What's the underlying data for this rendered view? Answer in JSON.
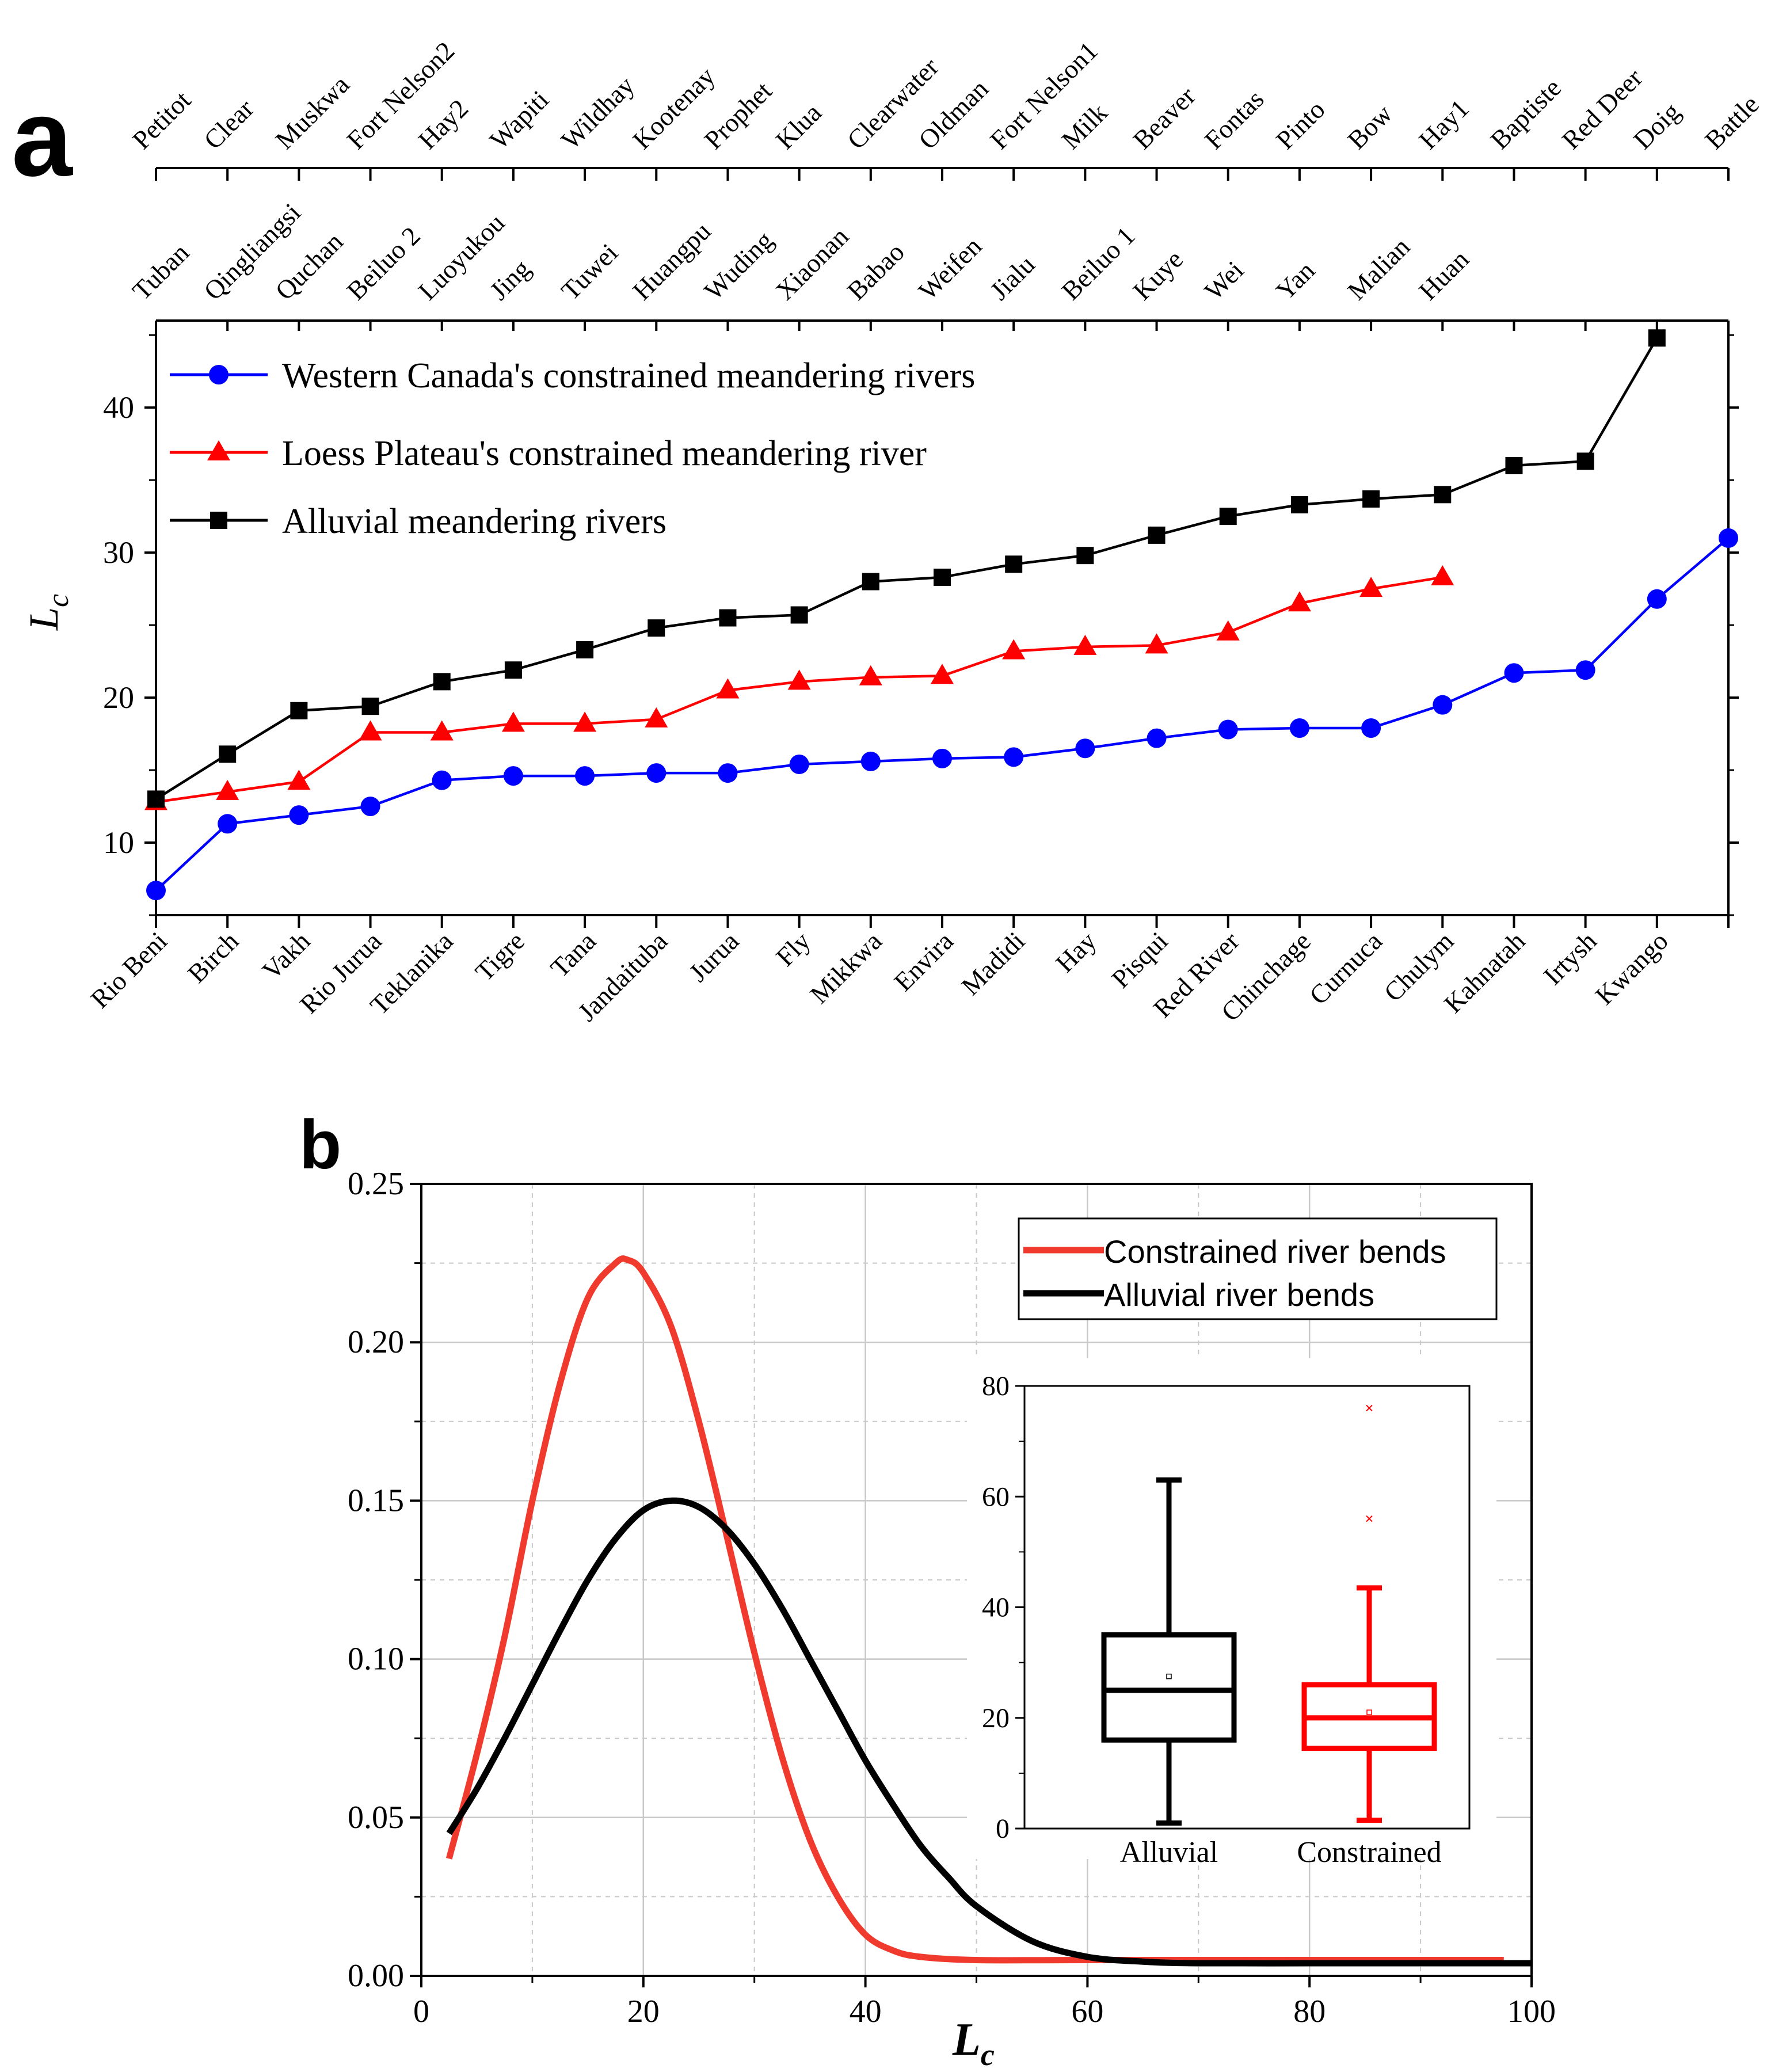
{
  "colors": {
    "western_canada": "#0000ff",
    "loess_plateau": "#ff0000",
    "alluvial": "#000000",
    "constrained_curve": "#f03a2e",
    "grid": "#c8c8c8"
  },
  "chart_data": [
    {
      "panel": "a",
      "type": "line",
      "ylabel": "L",
      "ylabel_sub": "c",
      "ylim": [
        5,
        46
      ],
      "yticks": [
        10,
        20,
        30,
        40
      ],
      "bottom_axis_labels": [
        "Rio Beni",
        "Birch",
        "Vakh",
        "Rio Jurua",
        "Teklanika",
        "Tigre",
        "Tana",
        "Jandaituba",
        "Jurua",
        "Fly",
        "Mikkwa",
        "Envira",
        "Madidi",
        "Hay",
        "Pisqui",
        "Red River",
        "Chinchage",
        "Curnuca",
        "Chulym",
        "Kahnatah",
        "Irtysh",
        "Kwango"
      ],
      "top_axis_labels_1": [
        "Petitot",
        "Clear",
        "Muskwa",
        "Fort Nelson2",
        "Hay2",
        "Wapiti",
        "Wildhay",
        "Kootenay",
        "Prophet",
        "Klua",
        "Clearwater",
        "Oldman",
        "Fort Nelson1",
        "Milk",
        "Beaver",
        "Fontas",
        "Pinto",
        "Bow",
        "Hay1",
        "Baptiste",
        "Red Deer",
        "Doig",
        "Battle"
      ],
      "top_axis_labels_2": [
        "Tuban",
        "Qingliangsi",
        "Quchan",
        "Beiluo 2",
        "Luoyukou",
        "Jing",
        "Tuwei",
        "Huangpu",
        "Wuding",
        "Xiaonan",
        "Babao",
        "Weifen",
        "Jialu",
        "Beiluo 1",
        "Kuye",
        "Wei",
        "Yan",
        "Malian",
        "Huan"
      ],
      "series": [
        {
          "name": "Western Canada's constrained meandering rivers",
          "marker": "circle",
          "color_key": "western_canada",
          "values": [
            6.7,
            11.3,
            11.9,
            12.5,
            14.3,
            14.6,
            14.6,
            14.8,
            14.8,
            15.4,
            15.6,
            15.8,
            15.9,
            16.5,
            17.2,
            17.8,
            17.9,
            17.9,
            19.5,
            21.7,
            21.9,
            26.8,
            31.0
          ]
        },
        {
          "name": "Loess Plateau's constrained meandering river",
          "marker": "triangle",
          "color_key": "loess_plateau",
          "values": [
            12.8,
            13.5,
            14.2,
            17.6,
            17.6,
            18.2,
            18.2,
            18.5,
            20.5,
            21.1,
            21.4,
            21.5,
            23.2,
            23.5,
            23.6,
            24.5,
            26.5,
            27.5,
            28.3
          ]
        },
        {
          "name": "Alluvial meandering rivers",
          "marker": "square",
          "color_key": "alluvial",
          "values": [
            13.0,
            16.1,
            19.1,
            19.4,
            21.1,
            21.9,
            23.3,
            24.8,
            25.5,
            25.7,
            28.0,
            28.3,
            29.2,
            29.8,
            31.2,
            32.5,
            33.3,
            33.7,
            34.0,
            36.0,
            36.3,
            44.8
          ]
        }
      ]
    },
    {
      "panel": "b",
      "type": "line",
      "xlabel": "L",
      "xlabel_sub": "c",
      "xlim": [
        0,
        100
      ],
      "ylim": [
        0,
        0.25
      ],
      "xticks": [
        0,
        20,
        40,
        60,
        80,
        100
      ],
      "yticks": [
        0.0,
        0.05,
        0.1,
        0.15,
        0.2,
        0.25
      ],
      "ytick_labels": [
        "0.00",
        "0.05",
        "0.10",
        "0.15",
        "0.20",
        "0.25"
      ],
      "grid": true,
      "legend_position": "top-right",
      "series": [
        {
          "name": "Constrained river bends",
          "color_key": "constrained_curve",
          "x": [
            2.5,
            5,
            7.5,
            10,
            12.5,
            15,
            17.5,
            18.6,
            20,
            22.5,
            25,
            27.5,
            30,
            32.5,
            35,
            37.5,
            40,
            42.5,
            45,
            50,
            60,
            80,
            97.5
          ],
          "values": [
            0.037,
            0.07,
            0.107,
            0.15,
            0.187,
            0.214,
            0.225,
            0.226,
            0.222,
            0.205,
            0.175,
            0.139,
            0.102,
            0.069,
            0.043,
            0.025,
            0.013,
            0.008,
            0.006,
            0.005,
            0.005,
            0.005,
            0.005
          ]
        },
        {
          "name": "Alluvial river bends",
          "color_key": "alluvial",
          "x": [
            2.5,
            5,
            7.5,
            10,
            12.5,
            15,
            17.5,
            20,
            22.5,
            25,
            27.5,
            30,
            32.5,
            35,
            37.5,
            40,
            42.5,
            45,
            47.5,
            50,
            55,
            60,
            65,
            70,
            80,
            90,
            100
          ],
          "values": [
            0.045,
            0.059,
            0.075,
            0.092,
            0.109,
            0.125,
            0.138,
            0.147,
            0.15,
            0.148,
            0.141,
            0.13,
            0.116,
            0.1,
            0.084,
            0.068,
            0.054,
            0.041,
            0.031,
            0.022,
            0.011,
            0.006,
            0.0045,
            0.004,
            0.004,
            0.004,
            0.004
          ]
        }
      ]
    },
    {
      "panel": "b-inset",
      "type": "box",
      "categories": [
        "Alluvial",
        "Constrained"
      ],
      "ylim": [
        0,
        80
      ],
      "yticks": [
        0,
        20,
        40,
        60,
        80
      ],
      "boxes": [
        {
          "name": "Alluvial",
          "color_key": "alluvial",
          "min": 1,
          "q1": 16,
          "median": 25,
          "q3": 35,
          "max": 63,
          "mean": 27.5,
          "outliers": []
        },
        {
          "name": "Constrained",
          "color_key": "loess_plateau",
          "min": 1.5,
          "q1": 14.5,
          "median": 20,
          "q3": 26,
          "max": 43.5,
          "mean": 21,
          "outliers": [
            56,
            76
          ]
        }
      ]
    }
  ],
  "labels": {
    "panel_a": "a",
    "panel_b": "b"
  }
}
